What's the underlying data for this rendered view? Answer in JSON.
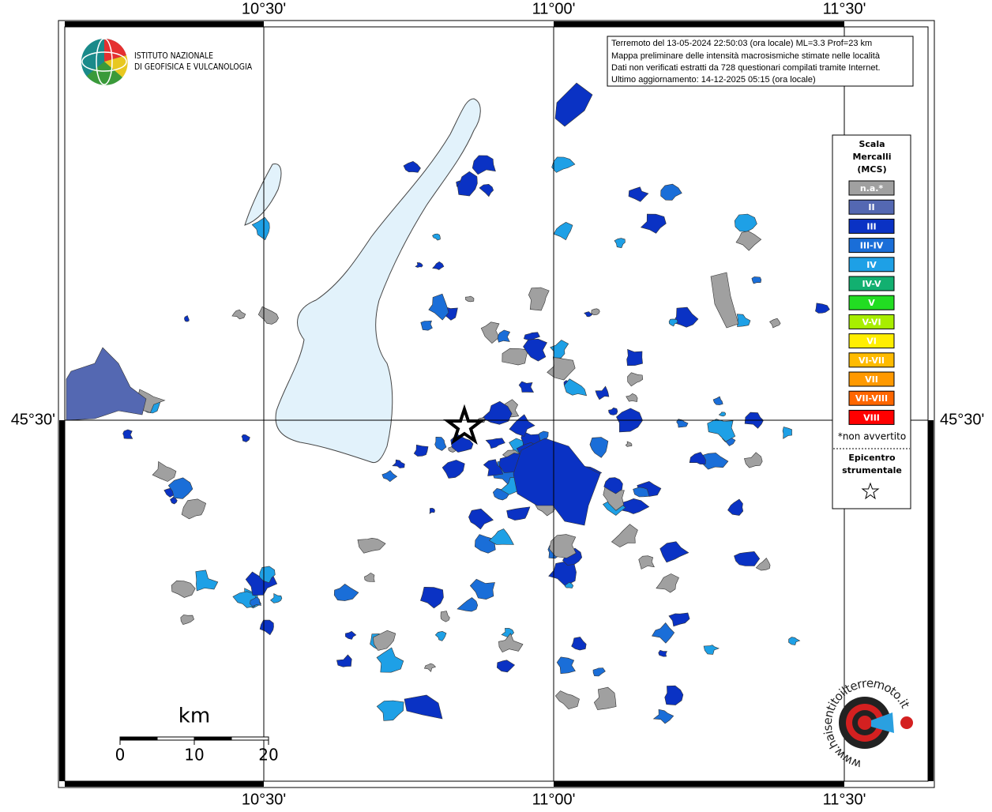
{
  "header": {
    "institute": [
      "ISTITUTO NAZIONALE",
      "DI GEOFISICA E VULCANOLOGIA"
    ]
  },
  "info": [
    "Terremoto del 13-05-2024 22:50:03 (ora locale) ML=3.3 Prof=23 km",
    "Mappa preliminare delle intensità macrosismiche stimate nelle località",
    "Dati non verificati estratti da 728 questionari compilati tramite Internet.",
    "Ultimo aggiornamento: 14-12-2025 05:15 (ora locale)"
  ],
  "grid": {
    "lon_labels": [
      "10°30'",
      "11°00'",
      "11°30'"
    ],
    "lat_labels": [
      "45°30'"
    ]
  },
  "legend": {
    "title": [
      "Scala",
      "Mercalli",
      "(MCS)"
    ],
    "items": [
      {
        "label": "n.a.*",
        "color": "#a0a0a0"
      },
      {
        "label": "II",
        "color": "#5468b2"
      },
      {
        "label": "III",
        "color": "#0a32c4"
      },
      {
        "label": "III-IV",
        "color": "#1a6ed8"
      },
      {
        "label": "IV",
        "color": "#1ea0e6"
      },
      {
        "label": "IV-V",
        "color": "#12b070"
      },
      {
        "label": "V",
        "color": "#22dd22"
      },
      {
        "label": "V-VI",
        "color": "#a8ee00"
      },
      {
        "label": "VI",
        "color": "#ffee00"
      },
      {
        "label": "VI-VII",
        "color": "#ffbb00"
      },
      {
        "label": "VII",
        "color": "#ff9900"
      },
      {
        "label": "VII-VIII",
        "color": "#ff6600"
      },
      {
        "label": "VIII",
        "color": "#ff0000"
      }
    ],
    "note": "*non avvertito",
    "epicenter": [
      "Epicentro",
      "strumentale"
    ]
  },
  "scale": {
    "unit": "km",
    "ticks": [
      0,
      10,
      20
    ]
  },
  "logo": {
    "site": "www.haisentitoilterremoto.it"
  }
}
